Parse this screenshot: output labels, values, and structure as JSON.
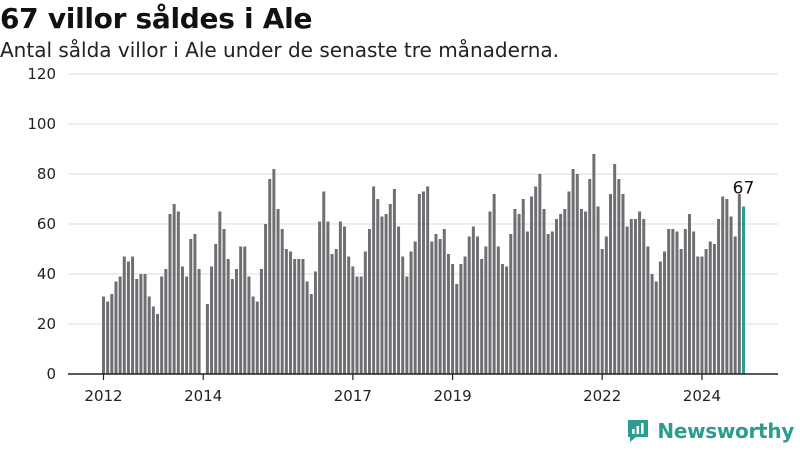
{
  "title": "67 villor såldes i Ale",
  "subtitle": "Antal sålda villor i Ale under de senaste tre månaderna.",
  "brand": {
    "name": "Newsworthy",
    "icon": "newsworthy-logo-icon",
    "color": "#2a9d8f"
  },
  "chart_data": {
    "type": "bar",
    "title": "67 villor såldes i Ale",
    "subtitle": "Antal sålda villor i Ale under de senaste tre månaderna.",
    "xlabel": "",
    "ylabel": "",
    "ylim": [
      0,
      120
    ],
    "yticks": [
      0,
      20,
      40,
      60,
      80,
      100,
      120
    ],
    "grid": true,
    "x_start": "2012-01",
    "x_tick_labels": [
      "2012",
      "2014",
      "2017",
      "2019",
      "2022",
      "2024"
    ],
    "bar_color": "#6e6e73",
    "highlight_color": "#2a9d8f",
    "highlight_label": "67",
    "values": [
      31,
      29,
      32,
      37,
      39,
      47,
      45,
      47,
      38,
      40,
      40,
      31,
      27,
      24,
      39,
      42,
      64,
      68,
      65,
      43,
      39,
      54,
      56,
      42,
      0,
      28,
      43,
      52,
      65,
      58,
      46,
      38,
      42,
      51,
      51,
      39,
      31,
      29,
      42,
      60,
      78,
      82,
      66,
      58,
      50,
      49,
      46,
      46,
      46,
      37,
      32,
      41,
      61,
      73,
      61,
      48,
      50,
      61,
      59,
      47,
      43,
      39,
      39,
      49,
      58,
      75,
      70,
      63,
      64,
      68,
      74,
      59,
      47,
      39,
      49,
      53,
      72,
      73,
      75,
      53,
      56,
      54,
      58,
      48,
      44,
      36,
      44,
      47,
      55,
      59,
      55,
      46,
      51,
      65,
      72,
      51,
      44,
      43,
      56,
      66,
      64,
      70,
      57,
      71,
      75,
      80,
      66,
      56,
      57,
      62,
      64,
      66,
      73,
      82,
      80,
      66,
      65,
      78,
      88,
      67,
      50,
      55,
      72,
      84,
      78,
      72,
      59,
      62,
      62,
      65,
      62,
      51,
      40,
      37,
      45,
      49,
      58,
      58,
      57,
      50,
      58,
      64,
      57,
      47,
      47,
      50,
      53,
      52,
      62,
      71,
      70,
      63,
      55,
      72,
      67
    ]
  }
}
